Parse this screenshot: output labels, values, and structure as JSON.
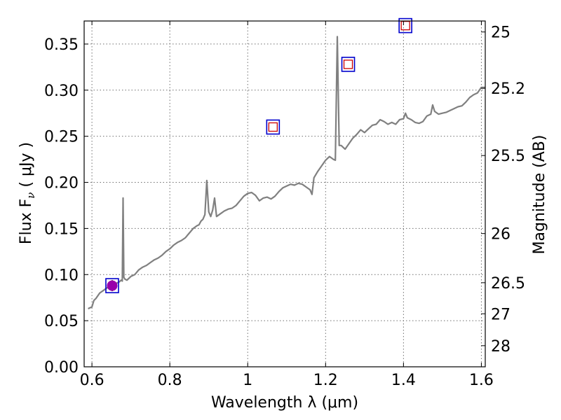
{
  "chart_data": {
    "type": "line",
    "xlabel": "Wavelength  λ (μm)",
    "ylabel": "Flux  F",
    "ylabel_sub": "ν",
    "ylabel_unit": "  ( μJy )",
    "y2label": "Magnitude (AB)",
    "xlim": [
      0.58,
      1.61
    ],
    "ylim": [
      0.0,
      0.375
    ],
    "xticks": [
      0.6,
      0.8,
      1.0,
      1.2,
      1.4,
      1.6
    ],
    "xtick_labels": [
      "0.6",
      "0.8",
      "1",
      "1.2",
      "1.4",
      "1.6"
    ],
    "yticks": [
      0.0,
      0.05,
      0.1,
      0.15,
      0.2,
      0.25,
      0.3,
      0.35
    ],
    "ytick_labels": [
      "0.00",
      "0.05",
      "0.10",
      "0.15",
      "0.20",
      "0.25",
      "0.30",
      "0.35"
    ],
    "y2ticks": [
      {
        "label": "25",
        "flux": 0.3631
      },
      {
        "label": "25.2",
        "flux": 0.302
      },
      {
        "label": "25.5",
        "flux": 0.2291
      },
      {
        "label": "26",
        "flux": 0.1445
      },
      {
        "label": "26.5",
        "flux": 0.0912
      },
      {
        "label": "27",
        "flux": 0.0575
      },
      {
        "label": "28",
        "flux": 0.0229
      }
    ],
    "grid": true,
    "series": [
      {
        "color": "#808080",
        "x": [
          0.59,
          0.6,
          0.605,
          0.61,
          0.62,
          0.63,
          0.64,
          0.65,
          0.655,
          0.66,
          0.665,
          0.67,
          0.675,
          0.678,
          0.68,
          0.682,
          0.685,
          0.69,
          0.7,
          0.71,
          0.72,
          0.73,
          0.74,
          0.75,
          0.76,
          0.77,
          0.78,
          0.79,
          0.8,
          0.81,
          0.82,
          0.83,
          0.84,
          0.85,
          0.86,
          0.87,
          0.875,
          0.88,
          0.885,
          0.89,
          0.895,
          0.9,
          0.905,
          0.91,
          0.915,
          0.92,
          0.93,
          0.94,
          0.95,
          0.96,
          0.97,
          0.98,
          0.99,
          1.0,
          1.01,
          1.02,
          1.03,
          1.04,
          1.05,
          1.06,
          1.07,
          1.08,
          1.09,
          1.1,
          1.11,
          1.12,
          1.13,
          1.14,
          1.15,
          1.16,
          1.165,
          1.17,
          1.18,
          1.19,
          1.2,
          1.21,
          1.22,
          1.225,
          1.23,
          1.235,
          1.24,
          1.25,
          1.26,
          1.27,
          1.28,
          1.29,
          1.3,
          1.31,
          1.32,
          1.33,
          1.34,
          1.35,
          1.36,
          1.37,
          1.38,
          1.39,
          1.4,
          1.405,
          1.41,
          1.42,
          1.43,
          1.44,
          1.45,
          1.46,
          1.47,
          1.475,
          1.48,
          1.49,
          1.5,
          1.51,
          1.52,
          1.53,
          1.54,
          1.55,
          1.56,
          1.57,
          1.58,
          1.59,
          1.6,
          1.61
        ],
        "y": [
          0.063,
          0.065,
          0.072,
          0.074,
          0.08,
          0.083,
          0.086,
          0.088,
          0.088,
          0.089,
          0.091,
          0.092,
          0.094,
          0.093,
          0.183,
          0.097,
          0.095,
          0.094,
          0.098,
          0.1,
          0.105,
          0.108,
          0.11,
          0.113,
          0.116,
          0.118,
          0.121,
          0.125,
          0.128,
          0.132,
          0.135,
          0.137,
          0.14,
          0.145,
          0.15,
          0.153,
          0.154,
          0.158,
          0.16,
          0.165,
          0.202,
          0.168,
          0.163,
          0.17,
          0.183,
          0.163,
          0.166,
          0.169,
          0.171,
          0.172,
          0.175,
          0.18,
          0.185,
          0.188,
          0.189,
          0.186,
          0.18,
          0.183,
          0.184,
          0.182,
          0.185,
          0.19,
          0.194,
          0.196,
          0.198,
          0.197,
          0.199,
          0.198,
          0.195,
          0.192,
          0.187,
          0.205,
          0.212,
          0.218,
          0.224,
          0.228,
          0.225,
          0.224,
          0.358,
          0.24,
          0.24,
          0.236,
          0.242,
          0.248,
          0.252,
          0.257,
          0.254,
          0.258,
          0.262,
          0.263,
          0.268,
          0.266,
          0.263,
          0.265,
          0.263,
          0.268,
          0.269,
          0.275,
          0.27,
          0.268,
          0.265,
          0.264,
          0.266,
          0.272,
          0.274,
          0.284,
          0.277,
          0.274,
          0.275,
          0.276,
          0.278,
          0.28,
          0.282,
          0.283,
          0.287,
          0.292,
          0.295,
          0.297,
          0.303,
          0.303
        ]
      }
    ],
    "photometry": [
      {
        "x": 0.652,
        "y_obs": 0.088,
        "y_model": 0.088,
        "yerr": 0.006,
        "filled": true
      },
      {
        "x": 1.065,
        "y_obs": 0.26,
        "y_model": 0.26,
        "filled": false
      },
      {
        "x": 1.258,
        "y_obs": 0.328,
        "y_model": 0.328,
        "filled": false
      },
      {
        "x": 1.405,
        "y_obs": 0.37,
        "y_model": 0.37,
        "filled": false
      }
    ],
    "marker_colors": {
      "model": "#0000cc",
      "obs": "#cc0000",
      "filled": "#9900aa"
    }
  }
}
